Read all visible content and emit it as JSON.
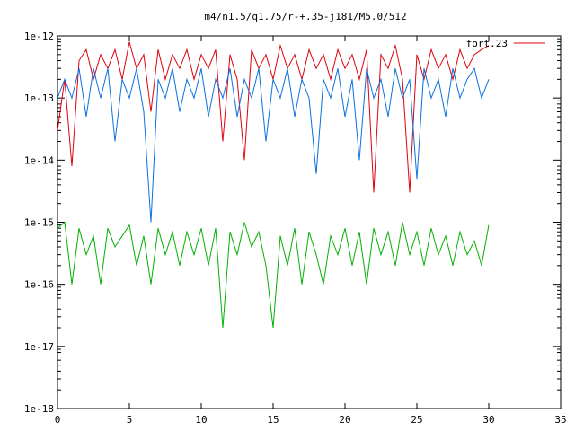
{
  "chart_data": {
    "type": "line",
    "title": "m4/n1.5/q1.75/r-+.35-j181/M5.0/512",
    "xlabel": "",
    "ylabel": "",
    "xlim": [
      0,
      35
    ],
    "ylim": [
      1e-18,
      1e-12
    ],
    "yscale": "log",
    "grid": false,
    "legend_position": "top-right",
    "x_ticks": [
      {
        "value": 0,
        "label": "0"
      },
      {
        "value": 5,
        "label": "5"
      },
      {
        "value": 10,
        "label": "10"
      },
      {
        "value": 15,
        "label": "15"
      },
      {
        "value": 20,
        "label": "20"
      },
      {
        "value": 25,
        "label": "25"
      },
      {
        "value": 30,
        "label": "30"
      },
      {
        "value": 35,
        "label": "35"
      }
    ],
    "y_ticks": [
      {
        "value": 1e-12,
        "label": "1e-12"
      },
      {
        "value": 1e-13,
        "label": "1e-13"
      },
      {
        "value": 1e-14,
        "label": "1e-14"
      },
      {
        "value": 1e-15,
        "label": "1e-15"
      },
      {
        "value": 1e-16,
        "label": "1e-16"
      },
      {
        "value": 1e-17,
        "label": "1e-17"
      },
      {
        "value": 1e-18,
        "label": "1e-18"
      }
    ],
    "series": [
      {
        "name": "fort.23",
        "color": "#e0000d",
        "x": [
          0,
          0.5,
          1,
          1.5,
          2,
          2.5,
          3,
          3.5,
          4,
          4.5,
          5,
          5.5,
          6,
          6.5,
          7,
          7.5,
          8,
          8.5,
          9,
          9.5,
          10,
          10.5,
          11,
          11.5,
          12,
          12.5,
          13,
          13.5,
          14,
          14.5,
          15,
          15.5,
          16,
          16.5,
          17,
          17.5,
          18,
          18.5,
          19,
          19.5,
          20,
          20.5,
          21,
          21.5,
          22,
          22.5,
          23,
          23.5,
          24,
          24.5,
          25,
          25.5,
          26,
          26.5,
          27,
          27.5,
          28,
          28.5,
          29,
          29.5,
          30
        ],
        "y": [
          3e-14,
          2e-13,
          8e-15,
          4e-13,
          6e-13,
          2e-13,
          5e-13,
          3e-13,
          6e-13,
          2e-13,
          8e-13,
          3e-13,
          5e-13,
          6e-14,
          6e-13,
          2e-13,
          5e-13,
          3e-13,
          6e-13,
          2e-13,
          5e-13,
          3e-13,
          6e-13,
          2e-14,
          5e-13,
          2e-13,
          1e-14,
          6e-13,
          3e-13,
          5e-13,
          2e-13,
          7e-13,
          3e-13,
          5e-13,
          2e-13,
          6e-13,
          3e-13,
          5e-13,
          2e-13,
          6e-13,
          3e-13,
          5e-13,
          2e-13,
          6e-13,
          3e-15,
          5e-13,
          3e-13,
          7e-13,
          2e-13,
          3e-15,
          5e-13,
          2e-13,
          6e-13,
          3e-13,
          5e-13,
          2e-13,
          6e-13,
          3e-13,
          5e-13,
          6e-13,
          7e-13
        ]
      },
      {
        "name": "",
        "color": "#0a70e0",
        "x": [
          0,
          0.5,
          1,
          1.5,
          2,
          2.5,
          3,
          3.5,
          4,
          4.5,
          5,
          5.5,
          6,
          6.5,
          7,
          7.5,
          8,
          8.5,
          9,
          9.5,
          10,
          10.5,
          11,
          11.5,
          12,
          12.5,
          13,
          13.5,
          14,
          14.5,
          15,
          15.5,
          16,
          16.5,
          17,
          17.5,
          18,
          18.5,
          19,
          19.5,
          20,
          20.5,
          21,
          21.5,
          22,
          22.5,
          23,
          23.5,
          24,
          24.5,
          25,
          25.5,
          26,
          26.5,
          27,
          27.5,
          28,
          28.5,
          29,
          29.5,
          30
        ],
        "y": [
          1e-13,
          2e-13,
          1e-13,
          3e-13,
          5e-14,
          3e-13,
          1e-13,
          3e-13,
          2e-14,
          2e-13,
          1e-13,
          3e-13,
          6e-14,
          1e-15,
          2e-13,
          1e-13,
          3e-13,
          6e-14,
          2e-13,
          1e-13,
          3e-13,
          5e-14,
          2e-13,
          1e-13,
          3e-13,
          5e-14,
          2e-13,
          1e-13,
          3e-13,
          2e-14,
          2e-13,
          1e-13,
          3e-13,
          5e-14,
          2e-13,
          1e-13,
          6e-15,
          2e-13,
          1e-13,
          3e-13,
          5e-14,
          2e-13,
          1e-14,
          3e-13,
          1e-13,
          2e-13,
          5e-14,
          3e-13,
          1e-13,
          2e-13,
          5e-15,
          3e-13,
          1e-13,
          2e-13,
          5e-14,
          3e-13,
          1e-13,
          2e-13,
          3e-13,
          1e-13,
          2e-13
        ]
      },
      {
        "name": "",
        "color": "#00b000",
        "x": [
          0,
          0.5,
          1,
          1.5,
          2,
          2.5,
          3,
          3.5,
          4,
          4.5,
          5,
          5.5,
          6,
          6.5,
          7,
          7.5,
          8,
          8.5,
          9,
          9.5,
          10,
          10.5,
          11,
          11.5,
          12,
          12.5,
          13,
          13.5,
          14,
          14.5,
          15,
          15.5,
          16,
          16.5,
          17,
          17.5,
          18,
          18.5,
          19,
          19.5,
          20,
          20.5,
          21,
          21.5,
          22,
          22.5,
          23,
          23.5,
          24,
          24.5,
          25,
          25.5,
          26,
          26.5,
          27,
          27.5,
          28,
          28.5,
          29,
          29.5,
          30
        ],
        "y": [
          8e-16,
          1e-15,
          1e-16,
          8e-16,
          3e-16,
          6e-16,
          1e-16,
          8e-16,
          4e-16,
          6e-16,
          9e-16,
          2e-16,
          6e-16,
          1e-16,
          8e-16,
          3e-16,
          7e-16,
          2e-16,
          7e-16,
          3e-16,
          8e-16,
          2e-16,
          8e-16,
          2e-17,
          7e-16,
          3e-16,
          1e-15,
          4e-16,
          7e-16,
          2e-16,
          2e-17,
          6e-16,
          2e-16,
          8e-16,
          1e-16,
          7e-16,
          3e-16,
          1e-16,
          6e-16,
          3e-16,
          8e-16,
          2e-16,
          7e-16,
          1e-16,
          8e-16,
          3e-16,
          7e-16,
          2e-16,
          1e-15,
          3e-16,
          7e-16,
          2e-16,
          8e-16,
          3e-16,
          6e-16,
          2e-16,
          7e-16,
          3e-16,
          5e-16,
          2e-16,
          9e-16
        ]
      }
    ]
  }
}
